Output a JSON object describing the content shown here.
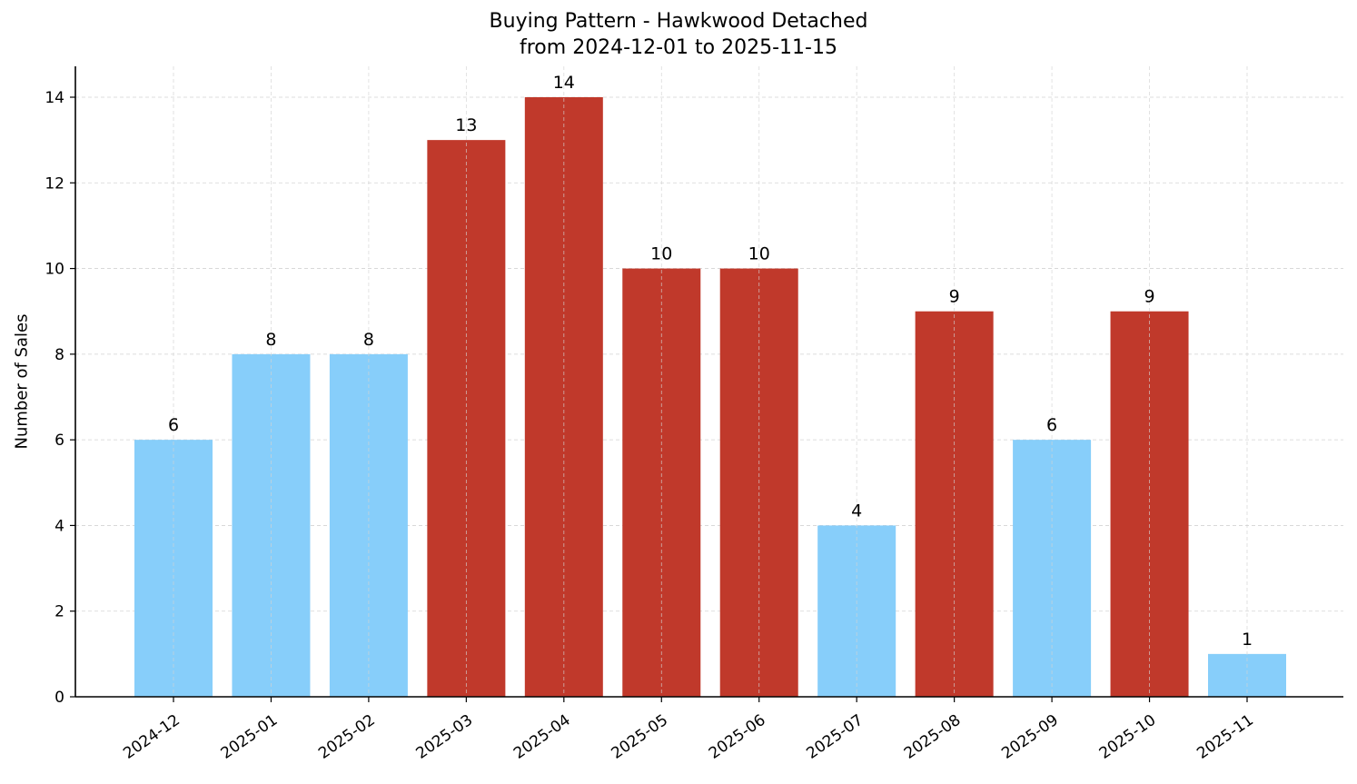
{
  "chart_data": {
    "type": "bar",
    "title": "Buying Pattern - Hawkwood Detached",
    "subtitle": "from 2024-12-01 to 2025-11-15",
    "xlabel": "",
    "ylabel": "Number of Sales",
    "categories": [
      "2024-12",
      "2025-01",
      "2025-02",
      "2025-03",
      "2025-04",
      "2025-05",
      "2025-06",
      "2025-07",
      "2025-08",
      "2025-09",
      "2025-10",
      "2025-11"
    ],
    "values": [
      6,
      8,
      8,
      13,
      14,
      10,
      10,
      4,
      9,
      6,
      9,
      1
    ],
    "bar_colors": [
      "#87CEFA",
      "#87CEFA",
      "#87CEFA",
      "#C0392B",
      "#C0392B",
      "#C0392B",
      "#C0392B",
      "#87CEFA",
      "#C0392B",
      "#87CEFA",
      "#C0392B",
      "#87CEFA"
    ],
    "data_labels": [
      "6",
      "8",
      "8",
      "13",
      "14",
      "10",
      "10",
      "4",
      "9",
      "6",
      "9",
      "1"
    ],
    "ylim": [
      0,
      14.7
    ],
    "yticks": [
      0,
      2,
      4,
      6,
      8,
      10,
      12,
      14
    ],
    "grid": true,
    "grid_style": "dashed",
    "legend": null,
    "xtick_rotation": 35
  },
  "colors": {
    "high": "#C0392B",
    "low": "#87CEFA",
    "grid": "#d3d3d3",
    "axis": "#000000"
  }
}
